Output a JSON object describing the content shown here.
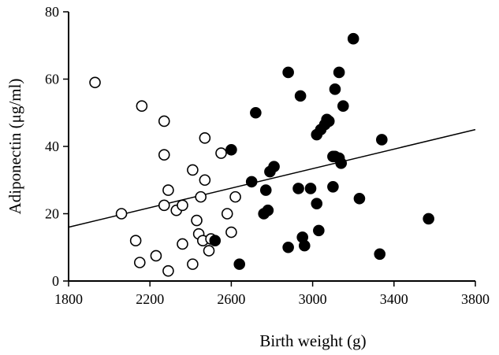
{
  "chart_data": {
    "type": "scatter",
    "title": "",
    "xlabel": "Birth weight (g)",
    "ylabel": "Adiponectin (μg/ml)",
    "xlim": [
      1800,
      3800
    ],
    "ylim": [
      0,
      80
    ],
    "xticks": [
      "1800",
      "2200",
      "2600",
      "3000",
      "3400",
      "3800"
    ],
    "yticks": [
      "0",
      "20",
      "40",
      "60",
      "80"
    ],
    "xtick_values": [
      1800,
      2200,
      2600,
      3000,
      3400,
      3800
    ],
    "ytick_values": [
      0,
      20,
      40,
      60,
      80
    ],
    "grid": false,
    "legend": "none",
    "colors": {
      "axis": "#000000",
      "marker": "#000000",
      "background": "#ffffff"
    },
    "series": [
      {
        "marker": "open-circle",
        "points": [
          [
            1930,
            59
          ],
          [
            2060,
            20
          ],
          [
            2130,
            12
          ],
          [
            2150,
            5.5
          ],
          [
            2160,
            52
          ],
          [
            2230,
            7.5
          ],
          [
            2270,
            22.5
          ],
          [
            2270,
            37.5
          ],
          [
            2270,
            47.5
          ],
          [
            2290,
            27
          ],
          [
            2290,
            3
          ],
          [
            2330,
            21
          ],
          [
            2360,
            11
          ],
          [
            2360,
            22.5
          ],
          [
            2410,
            33
          ],
          [
            2410,
            5
          ],
          [
            2430,
            18
          ],
          [
            2440,
            14
          ],
          [
            2450,
            25
          ],
          [
            2460,
            12
          ],
          [
            2470,
            30
          ],
          [
            2470,
            42.5
          ],
          [
            2490,
            9
          ],
          [
            2500,
            12.5
          ],
          [
            2550,
            38
          ],
          [
            2580,
            20
          ],
          [
            2600,
            14.5
          ],
          [
            2620,
            25
          ]
        ]
      },
      {
        "marker": "filled-circle",
        "points": [
          [
            2520,
            12
          ],
          [
            2600,
            39
          ],
          [
            2640,
            5
          ],
          [
            2700,
            29.5
          ],
          [
            2720,
            50
          ],
          [
            2760,
            20
          ],
          [
            2770,
            27
          ],
          [
            2780,
            21
          ],
          [
            2790,
            32.5
          ],
          [
            2810,
            34
          ],
          [
            2880,
            10
          ],
          [
            2880,
            62
          ],
          [
            2930,
            27.5
          ],
          [
            2940,
            55
          ],
          [
            2950,
            13
          ],
          [
            2960,
            10.5
          ],
          [
            2990,
            27.5
          ],
          [
            3020,
            23
          ],
          [
            3020,
            43.5
          ],
          [
            3030,
            15
          ],
          [
            3040,
            45
          ],
          [
            3060,
            46.5
          ],
          [
            3070,
            48
          ],
          [
            3080,
            47.5
          ],
          [
            3100,
            37
          ],
          [
            3100,
            28
          ],
          [
            3110,
            57
          ],
          [
            3110,
            37
          ],
          [
            3130,
            62
          ],
          [
            3130,
            36.5
          ],
          [
            3140,
            35
          ],
          [
            3150,
            52
          ],
          [
            3200,
            72
          ],
          [
            3230,
            24.5
          ],
          [
            3330,
            8
          ],
          [
            3340,
            42
          ],
          [
            3570,
            18.5
          ]
        ]
      }
    ],
    "trendline": {
      "x": [
        1800,
        3800
      ],
      "y": [
        16,
        45
      ]
    }
  }
}
